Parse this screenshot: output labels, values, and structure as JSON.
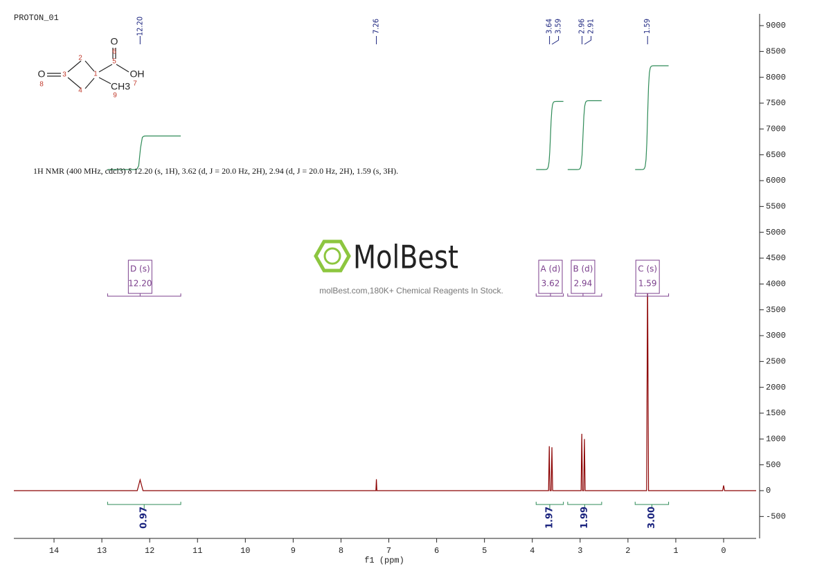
{
  "chart_data": {
    "type": "line",
    "title": "PROTON_01",
    "x_label": "f1 (ppm)",
    "description": "1H NMR (400 MHz, cdcl3) δ 12.20 (s, 1H), 3.62 (d, J = 20.0 Hz, 2H), 2.94 (d, J = 20.0 Hz, 2H), 1.59 (s, 3H).",
    "watermark": {
      "brand": "MolBest",
      "tagline": "molBest.com,180K+ Chemical Reagents In Stock."
    },
    "structure": {
      "atoms": [
        "O",
        "O",
        "OH",
        "CH3"
      ],
      "atom_numbers": [
        1,
        2,
        3,
        4,
        5,
        6,
        7,
        8,
        9
      ]
    },
    "color": "#8b0000",
    "x": [
      14.84,
      12.26,
      12.2,
      12.14,
      7.27,
      7.26,
      7.25,
      3.66,
      3.645,
      3.63,
      3.605,
      3.59,
      3.575,
      2.98,
      2.965,
      2.95,
      2.925,
      2.91,
      2.895,
      1.61,
      1.59,
      1.57,
      0.02,
      0,
      -0.02,
      -0.68
    ],
    "values": [
      0,
      0,
      210,
      0,
      0,
      220,
      0,
      0,
      860,
      0,
      0,
      840,
      0,
      0,
      1100,
      0,
      0,
      1000,
      0,
      0,
      4200,
      0,
      0,
      100,
      0,
      0
    ],
    "xlim": [
      14.84,
      -0.68
    ],
    "xticks": [
      14,
      13,
      12,
      11,
      10,
      9,
      8,
      7,
      6,
      5,
      4,
      3,
      2,
      1,
      0
    ],
    "ylim": [
      -924,
      9228
    ],
    "yticks": [
      -500,
      0,
      500,
      1000,
      1500,
      2000,
      2500,
      3000,
      3500,
      4000,
      4500,
      5000,
      5500,
      6000,
      6500,
      7000,
      7500,
      8000,
      8500,
      9000
    ],
    "peak_labels": [
      {
        "value": 12.2,
        "label": "12.20"
      },
      {
        "value": 7.26,
        "label": "7.26"
      },
      {
        "value": 3.64,
        "label": "3.64"
      },
      {
        "value": 3.59,
        "label": "3.59"
      },
      {
        "value": 2.96,
        "label": "2.96"
      },
      {
        "value": 2.91,
        "label": "2.91"
      },
      {
        "value": 1.59,
        "label": "1.59"
      }
    ],
    "multiplets": [
      {
        "label": "D (s)",
        "shift": {
          "value": 12.2,
          "label": "12.20"
        },
        "range": [
          12.88,
          11.35
        ],
        "integral": {
          "value": 0.97,
          "label": "0.97"
        }
      },
      {
        "label": "A (d)",
        "shift": {
          "value": 3.62,
          "label": "3.62"
        },
        "range": [
          3.92,
          3.35
        ],
        "integral": {
          "value": 1.97,
          "label": "1.97"
        }
      },
      {
        "label": "B (d)",
        "shift": {
          "value": 2.94,
          "label": "2.94"
        },
        "range": [
          3.26,
          2.55
        ],
        "integral": {
          "value": 1.99,
          "label": "1.99"
        }
      },
      {
        "label": "C (s)",
        "shift": {
          "value": 1.59,
          "label": "1.59"
        },
        "range": [
          1.85,
          1.15
        ],
        "integral": {
          "value": 3,
          "label": "3.00"
        }
      }
    ]
  }
}
